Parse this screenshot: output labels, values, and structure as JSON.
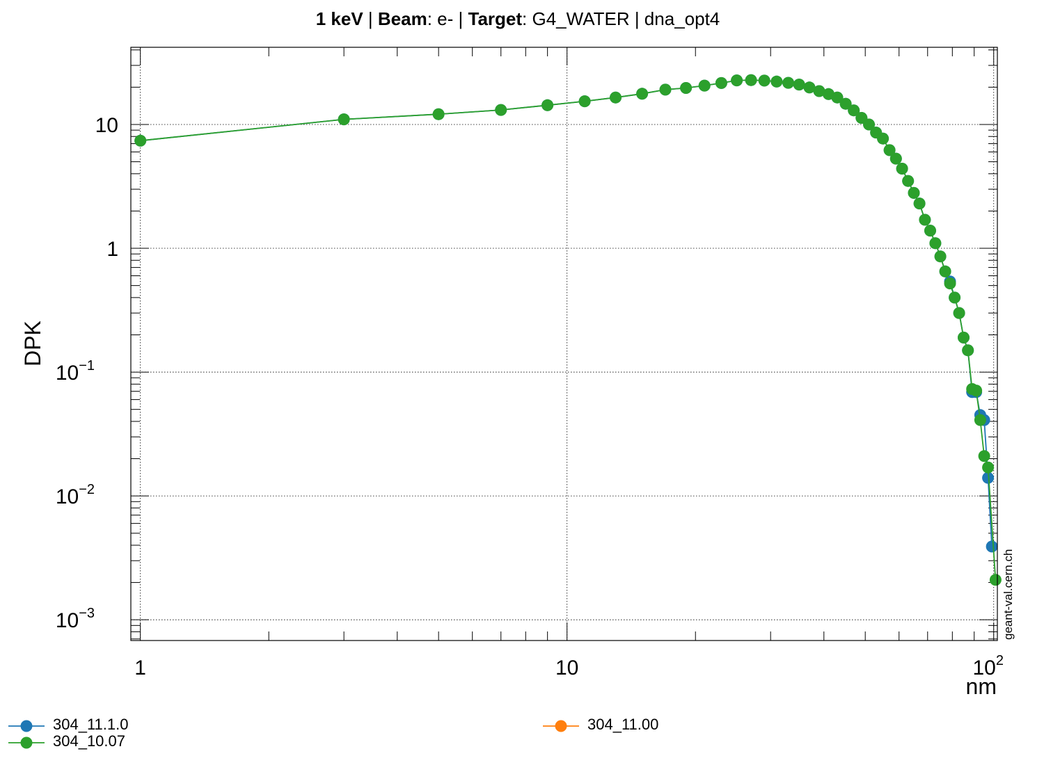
{
  "chart_data": {
    "type": "line",
    "title_parts": [
      {
        "text": "1 keV",
        "bold": true
      },
      {
        "text": " | ",
        "bold": false
      },
      {
        "text": "Beam",
        "bold": true
      },
      {
        "text": ": e- | ",
        "bold": false
      },
      {
        "text": "Target",
        "bold": true
      },
      {
        "text": ": G4_WATER | dna_opt4",
        "bold": false
      }
    ],
    "xlabel": "nm",
    "ylabel": "DPK",
    "x_scale": "log",
    "y_scale": "log",
    "xlim": [
      0.95,
      102
    ],
    "ylim": [
      0.00068,
      42
    ],
    "grid": true,
    "x_ticks": [
      {
        "value": 1,
        "base": "1",
        "exp": ""
      },
      {
        "value": 10,
        "base": "10",
        "exp": ""
      },
      {
        "value": 100,
        "base": "10",
        "exp": "2"
      }
    ],
    "y_ticks": [
      {
        "value": 10,
        "base": "10",
        "exp": ""
      },
      {
        "value": 1,
        "base": "1",
        "exp": ""
      },
      {
        "value": 0.1,
        "base": "10",
        "exp": "−1"
      },
      {
        "value": 0.01,
        "base": "10",
        "exp": "−2"
      },
      {
        "value": 0.001,
        "base": "10",
        "exp": "−3"
      }
    ],
    "legend_placement": "bottom",
    "watermark": "geant-val.cern.ch",
    "series": [
      {
        "name": "304_11.1.0",
        "color": "#1f77b4",
        "x": [
          1,
          3,
          5,
          7,
          9,
          11,
          13,
          15,
          17,
          19,
          21,
          23,
          25,
          27,
          29,
          31,
          33,
          35,
          37,
          39,
          41,
          43,
          45,
          47,
          49,
          51,
          53,
          55,
          57,
          59,
          61,
          63,
          65,
          67,
          69,
          71,
          73,
          75,
          77,
          79,
          81,
          83,
          85,
          87,
          89,
          91,
          93,
          95,
          97,
          99,
          101
        ],
        "y": [
          7.4,
          11.0,
          12.1,
          13.1,
          14.3,
          15.4,
          16.5,
          17.7,
          19.1,
          19.7,
          20.6,
          21.6,
          22.7,
          22.8,
          22.6,
          22.2,
          21.7,
          21.0,
          19.9,
          18.6,
          17.6,
          16.5,
          14.7,
          13.0,
          11.3,
          10.0,
          8.6,
          7.7,
          6.2,
          5.3,
          4.4,
          3.5,
          2.8,
          2.3,
          1.7,
          1.39,
          1.1,
          0.86,
          0.65,
          0.54,
          0.4,
          0.3,
          0.19,
          0.15,
          0.069,
          0.069,
          0.045,
          0.041,
          0.014,
          0.0039,
          null
        ]
      },
      {
        "name": "304_11.00",
        "color": "#ff7f0e",
        "x": [],
        "y": []
      },
      {
        "name": "304_10.07",
        "color": "#2ca02c",
        "x": [
          1,
          3,
          5,
          7,
          9,
          11,
          13,
          15,
          17,
          19,
          21,
          23,
          25,
          27,
          29,
          31,
          33,
          35,
          37,
          39,
          41,
          43,
          45,
          47,
          49,
          51,
          53,
          55,
          57,
          59,
          61,
          63,
          65,
          67,
          69,
          71,
          73,
          75,
          77,
          79,
          81,
          83,
          85,
          87,
          89,
          91,
          93,
          95,
          97,
          99,
          101
        ],
        "y": [
          7.4,
          11.0,
          12.1,
          13.1,
          14.3,
          15.4,
          16.5,
          17.7,
          19.1,
          19.7,
          20.6,
          21.6,
          22.7,
          22.8,
          22.6,
          22.2,
          21.7,
          21.0,
          19.9,
          18.6,
          17.6,
          16.5,
          14.7,
          13.0,
          11.3,
          10.0,
          8.6,
          7.7,
          6.2,
          5.3,
          4.4,
          3.5,
          2.8,
          2.3,
          1.7,
          1.39,
          1.1,
          0.86,
          0.65,
          0.52,
          0.4,
          0.3,
          0.19,
          0.15,
          0.073,
          0.071,
          0.041,
          0.021,
          0.017,
          null,
          0.0021
        ]
      }
    ]
  }
}
